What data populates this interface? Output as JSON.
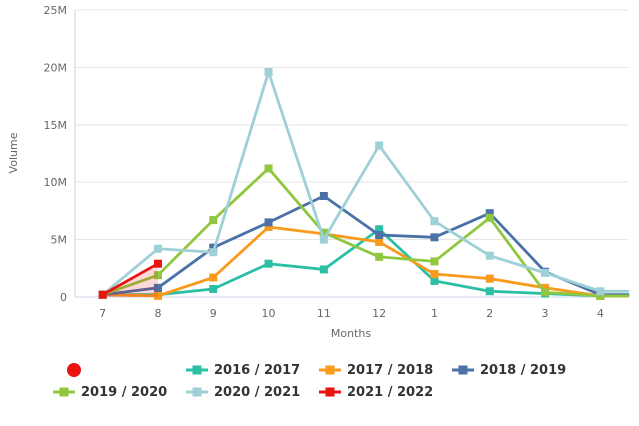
{
  "chart_data": {
    "type": "line",
    "title": "",
    "xlabel": "Months",
    "ylabel": "Volume",
    "categories": [
      "7",
      "8",
      "9",
      "10",
      "11",
      "12",
      "1",
      "2",
      "3",
      "4"
    ],
    "y_tick_values": [
      0,
      5,
      10,
      15,
      20,
      25
    ],
    "y_tick_labels": [
      "0",
      "5M",
      "10M",
      "15M",
      "20M",
      "25M"
    ],
    "ylim_millions": [
      0,
      25
    ],
    "values_unit": "millions",
    "grid": "horizontal-only",
    "legend_position": "bottom",
    "lines_extend_to_plot_edge": true,
    "axis_line_color": "#ccd6eb",
    "grid_color": "#e6e6e6",
    "tick_label_color": "#666666",
    "series": [
      {
        "name": "2016 / 2017",
        "color": "#2bbfa4",
        "values": [
          0.2,
          0.2,
          0.7,
          2.9,
          2.4,
          5.9,
          1.4,
          0.5,
          0.3,
          0.1
        ]
      },
      {
        "name": "2017 / 2018",
        "color": "#f89a1c",
        "values": [
          0.2,
          0.1,
          1.7,
          6.1,
          5.5,
          4.8,
          2.0,
          1.6,
          0.8,
          0.1
        ]
      },
      {
        "name": "2018 / 2019",
        "color": "#4a71a8",
        "values": [
          0.2,
          0.8,
          4.3,
          6.5,
          8.8,
          5.4,
          5.2,
          7.3,
          2.2,
          0.2
        ]
      },
      {
        "name": "2019 / 2020",
        "color": "#8fc73f",
        "values": [
          0.2,
          1.9,
          6.7,
          11.2,
          5.6,
          3.5,
          3.1,
          6.9,
          0.4,
          0.1
        ]
      },
      {
        "name": "2020 / 2021",
        "color": "#9fd0d8",
        "values": [
          0.2,
          4.2,
          3.9,
          19.6,
          5.0,
          13.2,
          6.6,
          3.6,
          2.1,
          0.5
        ]
      },
      {
        "name": "2021 / 2022",
        "color": "#e81410",
        "values": [
          0.2,
          2.9,
          null,
          null,
          null,
          null,
          null,
          null,
          null,
          null
        ],
        "area_fill": "rgba(232,20,16,0.16)"
      }
    ]
  },
  "legend": {
    "items": [
      {
        "label": "",
        "marker": "dot",
        "color": "#e81410"
      },
      {
        "label": "2016 / 2017",
        "marker": "line-square",
        "color": "#2bbfa4"
      },
      {
        "label": "2017 / 2018",
        "marker": "line-square",
        "color": "#f89a1c"
      },
      {
        "label": "2018 / 2019",
        "marker": "line-square",
        "color": "#4a71a8"
      },
      {
        "label": "2019 / 2020",
        "marker": "line-square",
        "color": "#8fc73f"
      },
      {
        "label": "2020 / 2021",
        "marker": "line-square",
        "color": "#9fd0d8"
      },
      {
        "label": "2021 / 2022",
        "marker": "line-square",
        "color": "#e81410"
      }
    ]
  }
}
